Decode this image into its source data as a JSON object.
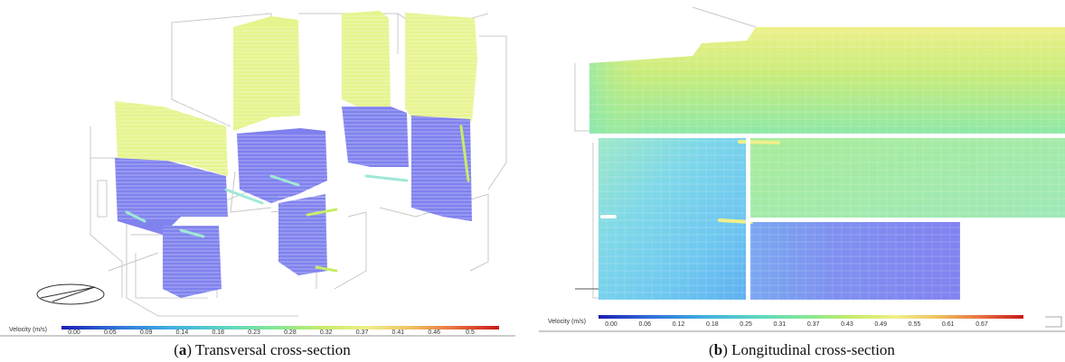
{
  "figure": {
    "panel_a": {
      "caption_letter": "a",
      "caption_text": ") Transversal cross-section",
      "colorbar_label": "Velocity (m/s)",
      "colorbar_ticks": [
        "0.00",
        "0.05",
        "0.09",
        "0.14",
        "0.18",
        "0.23",
        "0.28",
        "0.32",
        "0.37",
        "0.41",
        "0.46",
        "0.5"
      ]
    },
    "panel_b": {
      "caption_letter": "b",
      "caption_text": ") Longitudinal cross-section",
      "colorbar_label": "Velocity (m/s)",
      "colorbar_ticks": [
        "0.00",
        "0.06",
        "0.12",
        "0.18",
        "0.25",
        "0.31",
        "0.37",
        "0.43",
        "0.49",
        "0.55",
        "0.61",
        "0.67"
      ]
    },
    "colormap": [
      "#2b2fd8",
      "#3f7fe0",
      "#4fc0e0",
      "#66e0c0",
      "#8ee890",
      "#c8ec6a",
      "#eef08a",
      "#f0d070",
      "#f0a050",
      "#e06040",
      "#c82020"
    ],
    "field_colors": {
      "low": "#7f80ee",
      "mid": "#9fe8d8",
      "high": "#e6f48e",
      "peak": "#f2ec8a"
    }
  }
}
